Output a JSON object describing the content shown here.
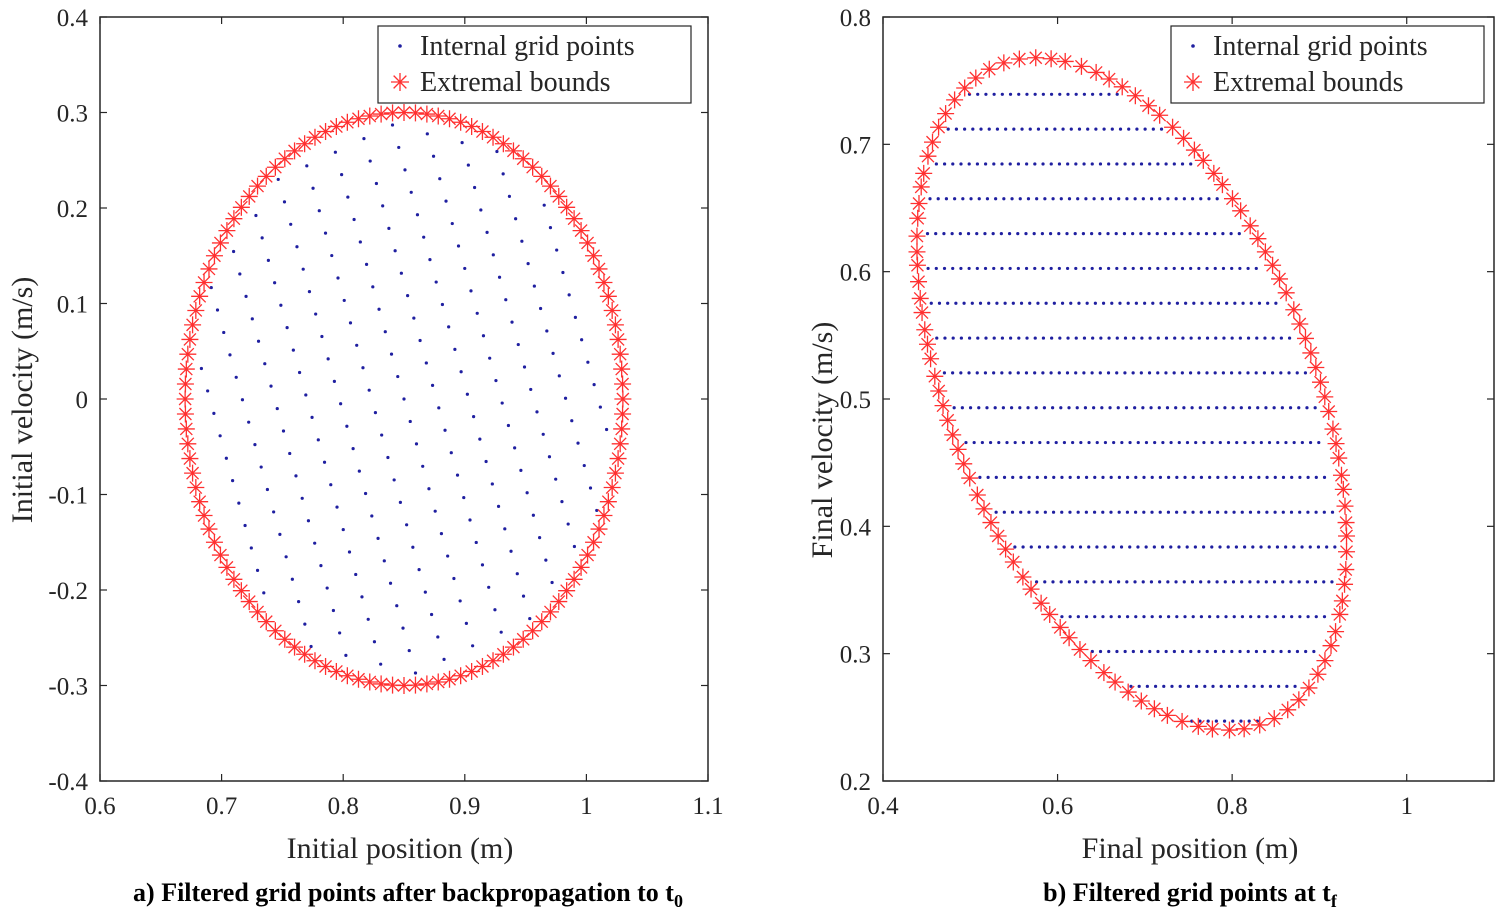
{
  "colors": {
    "internal": "#1f1fa0",
    "bounds": "#ff3030",
    "axis": "#262626"
  },
  "chart_data": [
    {
      "type": "scatter",
      "id": "a",
      "xlabel": "Initial position (m)",
      "ylabel": "Initial velocity (m/s)",
      "xlim": [
        0.6,
        1.1
      ],
      "ylim": [
        -0.4,
        0.4
      ],
      "xticks": [
        "0.6",
        "0.7",
        "0.8",
        "0.9",
        "1",
        "1.1"
      ],
      "yticks": [
        "0.4",
        "0.3",
        "0.2",
        "0.1",
        "0",
        "-0.1",
        "-0.2",
        "-0.3",
        "-0.4"
      ],
      "caption": {
        "main": "a) Filtered grid points after backpropagation to t",
        "sub": "0"
      },
      "legend": {
        "position": "top-right",
        "entries": [
          "Internal grid points",
          "Extremal bounds"
        ]
      },
      "series": [
        {
          "name": "Internal grid points",
          "marker": "dot",
          "grid": {
            "center": [
              0.85,
              0.0
            ],
            "semi_axes": [
              0.18,
              0.3
            ],
            "step": [
              0.025,
              0.025
            ],
            "rotation_deg": 20
          }
        },
        {
          "name": "Extremal bounds",
          "marker": "asterisk",
          "ellipse": {
            "center": [
              0.85,
              0.0
            ],
            "semi_axes": [
              0.18,
              0.3
            ],
            "count": 120
          }
        }
      ]
    },
    {
      "type": "scatter",
      "id": "b",
      "xlabel": "Final position (m)",
      "ylabel": "Final velocity (m/s)",
      "xlim": [
        0.4,
        1.1
      ],
      "ylim": [
        0.2,
        0.8
      ],
      "xticks": [
        "0.4",
        "0.6",
        "0.8",
        "1"
      ],
      "yticks": [
        "0.8",
        "0.7",
        "0.6",
        "0.5",
        "0.4",
        "0.3",
        "0.2"
      ],
      "caption": {
        "main": "b) Filtered grid points at t",
        "sub": "f"
      },
      "legend": {
        "position": "top-right",
        "entries": [
          "Internal grid points",
          "Extremal bounds"
        ]
      },
      "series": [
        {
          "name": "Internal grid points",
          "marker": "dot",
          "rows": {
            "y_start": 0.247,
            "y_end": 0.76,
            "y_step": 0.02735,
            "x_step": 0.0094
          }
        },
        {
          "name": "Extremal bounds",
          "marker": "asterisk",
          "ellipse": {
            "point_a": [
              0.575,
              0.768
            ],
            "point_b": [
              0.795,
              0.24
            ],
            "x_extent": [
              0.458,
              0.912
            ],
            "count": 110
          }
        }
      ]
    }
  ]
}
